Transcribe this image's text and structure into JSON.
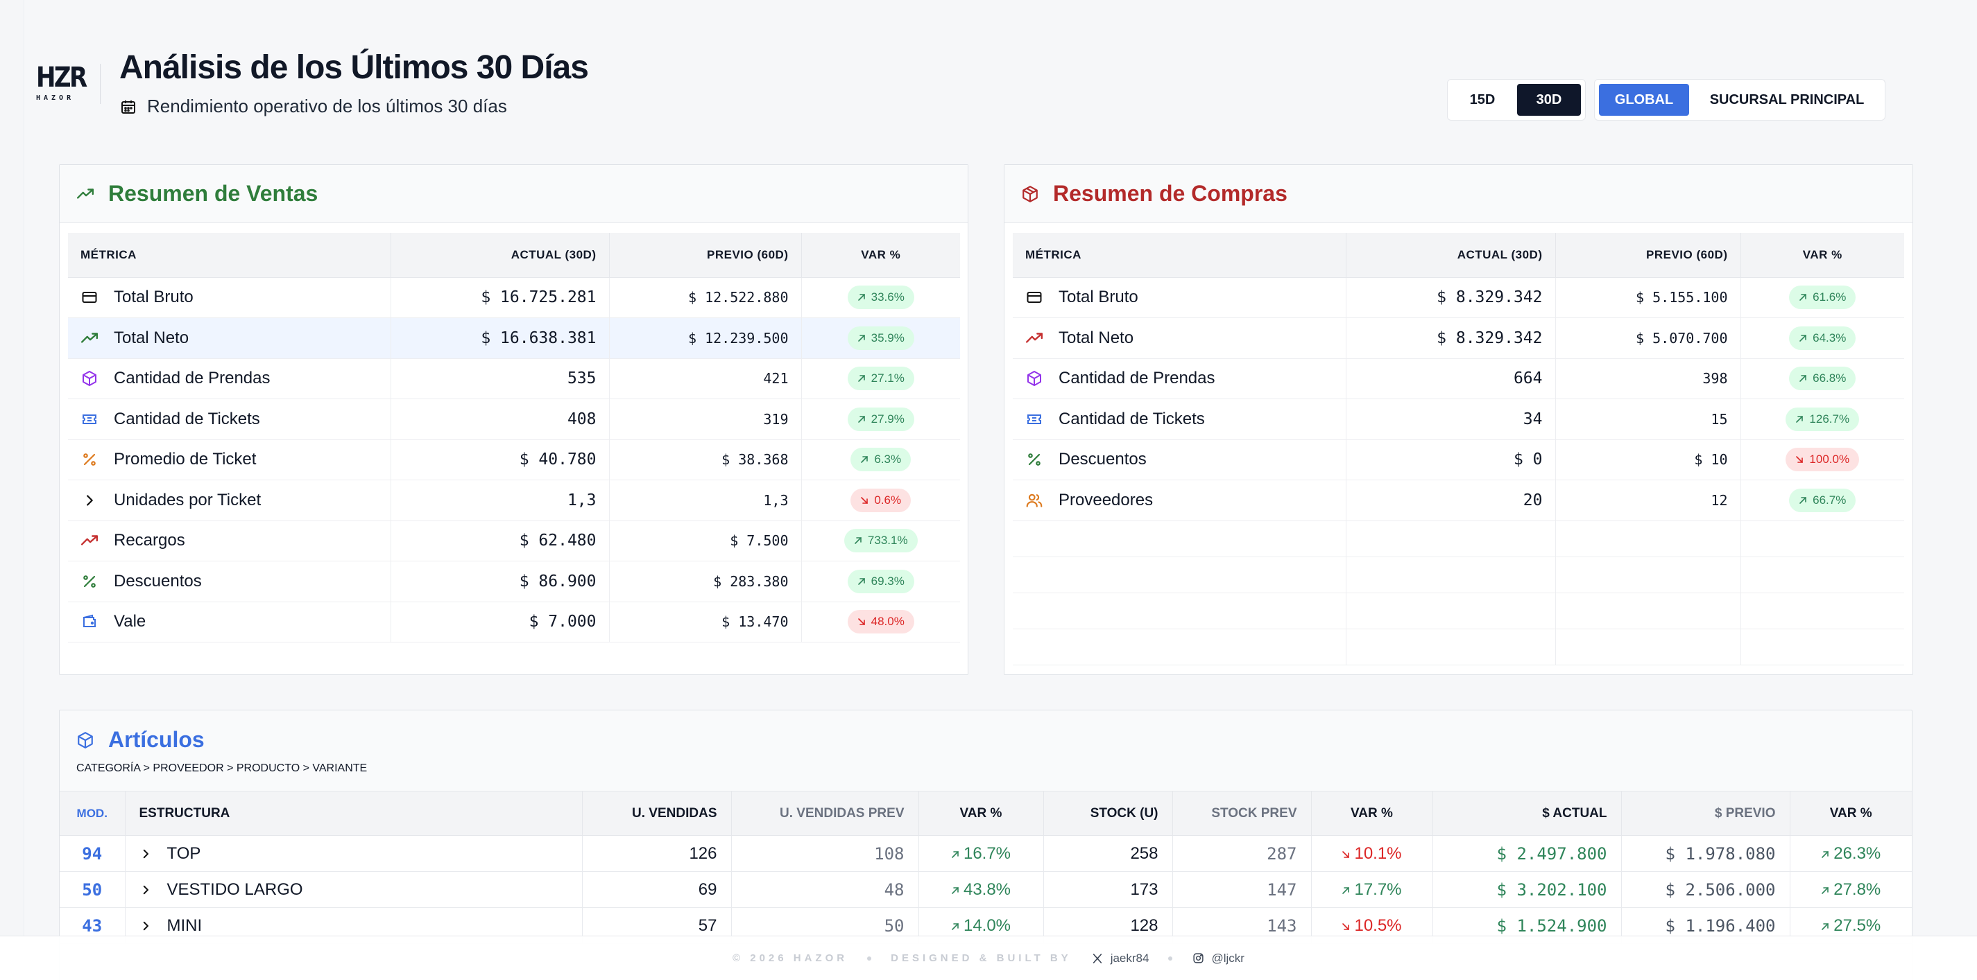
{
  "header": {
    "logo_text": "HZR",
    "logo_sub": "HAZOR",
    "title": "Análisis de los Últimos 30 Días",
    "subtitle": "Rendimiento operativo de los últimos 30 días",
    "range_15": "15D",
    "range_30": "30D",
    "scope_global": "GLOBAL",
    "scope_branch": "SUCURSAL PRINCIPAL"
  },
  "ventas": {
    "title": "Resumen de Ventas",
    "accent": "#2f7d3b",
    "headers": [
      "MÉTRICA",
      "ACTUAL (30D)",
      "PREVIO (60D)",
      "VAR %"
    ],
    "rows": [
      {
        "icon": "credit-card-icon",
        "label": "Total Bruto",
        "actual": "$ 16.725.281",
        "prev": "$ 12.522.880",
        "var": "33.6%",
        "dir": "up"
      },
      {
        "icon": "trending-up-icon",
        "label": "Total Neto",
        "actual": "$ 16.638.381",
        "prev": "$ 12.239.500",
        "var": "35.9%",
        "dir": "up"
      },
      {
        "icon": "box-icon",
        "label": "Cantidad de Prendas",
        "actual": "535",
        "prev": "421",
        "var": "27.1%",
        "dir": "up"
      },
      {
        "icon": "ticket-icon",
        "label": "Cantidad de Tickets",
        "actual": "408",
        "prev": "319",
        "var": "27.9%",
        "dir": "up"
      },
      {
        "icon": "percent-icon",
        "label": "Promedio de Ticket",
        "actual": "$ 40.780",
        "prev": "$ 38.368",
        "var": "6.3%",
        "dir": "up"
      },
      {
        "icon": "chevron-right-icon",
        "label": "Unidades por Ticket",
        "actual": "1,3",
        "prev": "1,3",
        "var": "0.6%",
        "dir": "down"
      },
      {
        "icon": "trending-up-red-icon",
        "label": "Recargos",
        "actual": "$ 62.480",
        "prev": "$ 7.500",
        "var": "733.1%",
        "dir": "up"
      },
      {
        "icon": "percent-green-icon",
        "label": "Descuentos",
        "actual": "$ 86.900",
        "prev": "$ 283.380",
        "var": "69.3%",
        "dir": "up"
      },
      {
        "icon": "wallet-icon",
        "label": "Vale",
        "actual": "$ 7.000",
        "prev": "$ 13.470",
        "var": "48.0%",
        "dir": "down"
      }
    ]
  },
  "compras": {
    "title": "Resumen de Compras",
    "accent": "#b32a2a",
    "headers": [
      "MÉTRICA",
      "ACTUAL (30D)",
      "PREVIO (60D)",
      "VAR %"
    ],
    "rows": [
      {
        "icon": "credit-card-icon",
        "label": "Total Bruto",
        "actual": "$ 8.329.342",
        "prev": "$ 5.155.100",
        "var": "61.6%",
        "dir": "up"
      },
      {
        "icon": "trending-up-red-icon",
        "label": "Total Neto",
        "actual": "$ 8.329.342",
        "prev": "$ 5.070.700",
        "var": "64.3%",
        "dir": "up"
      },
      {
        "icon": "box-icon",
        "label": "Cantidad de Prendas",
        "actual": "664",
        "prev": "398",
        "var": "66.8%",
        "dir": "up"
      },
      {
        "icon": "ticket-icon",
        "label": "Cantidad de Tickets",
        "actual": "34",
        "prev": "15",
        "var": "126.7%",
        "dir": "up"
      },
      {
        "icon": "percent-green-icon",
        "label": "Descuentos",
        "actual": "$ 0",
        "prev": "$ 10",
        "var": "100.0%",
        "dir": "down"
      },
      {
        "icon": "users-icon",
        "label": "Proveedores",
        "actual": "20",
        "prev": "12",
        "var": "66.7%",
        "dir": "up"
      }
    ]
  },
  "articulos": {
    "title": "Artículos",
    "breadcrumb": "CATEGORÍA > PROVEEDOR > PRODUCTO > VARIANTE",
    "headers": [
      "MOD.",
      "ESTRUCTURA",
      "U. VENDIDAS",
      "U. VENDIDAS PREV",
      "VAR %",
      "STOCK (U)",
      "STOCK PREV",
      "VAR %",
      "$ ACTUAL",
      "$ PREVIO",
      "VAR %"
    ],
    "rows": [
      {
        "mod": "94",
        "name": "TOP",
        "uv": "126",
        "uvp": "108",
        "uvv": "16.7%",
        "uvd": "up",
        "st": "258",
        "stp": "287",
        "stv": "10.1%",
        "std": "down",
        "act": "$ 2.497.800",
        "prev": "$ 1.978.080",
        "mv": "26.3%",
        "md": "up"
      },
      {
        "mod": "50",
        "name": "VESTIDO LARGO",
        "uv": "69",
        "uvp": "48",
        "uvv": "43.8%",
        "uvd": "up",
        "st": "173",
        "stp": "147",
        "stv": "17.7%",
        "std": "up",
        "act": "$ 3.202.100",
        "prev": "$ 2.506.000",
        "mv": "27.8%",
        "md": "up"
      },
      {
        "mod": "43",
        "name": "MINI",
        "uv": "57",
        "uvp": "50",
        "uvv": "14.0%",
        "uvd": "up",
        "st": "128",
        "stp": "143",
        "stv": "10.5%",
        "std": "down",
        "act": "$ 1.524.900",
        "prev": "$ 1.196.400",
        "mv": "27.5%",
        "md": "up"
      }
    ]
  },
  "footer": {
    "copyright": "© 2026 HAZOR",
    "built": "DESIGNED & BUILT BY",
    "x_handle": "jaekr84",
    "ig_handle": "@ljckr"
  }
}
